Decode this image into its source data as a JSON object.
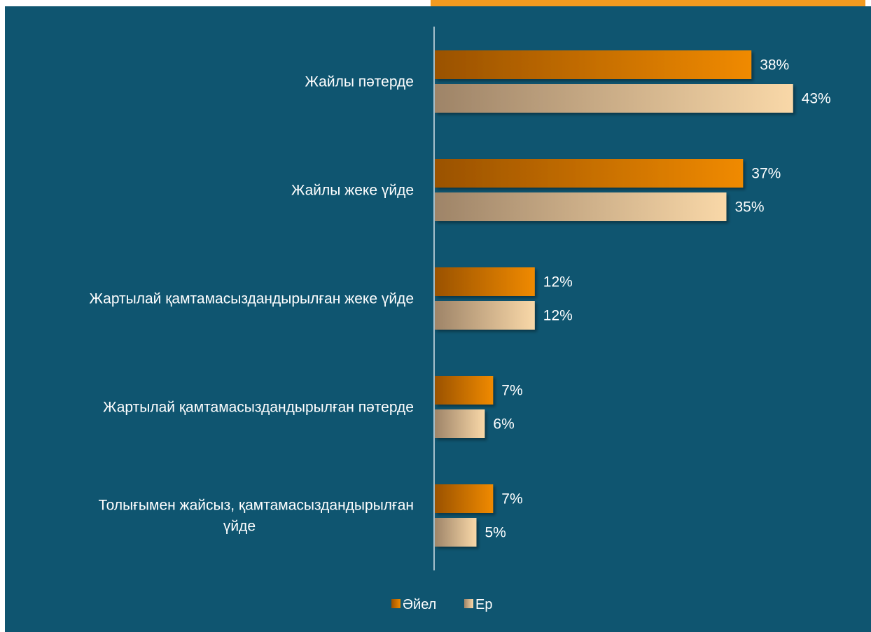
{
  "chart_data": {
    "type": "bar",
    "orientation": "horizontal",
    "title": "",
    "xlabel": "",
    "ylabel": "",
    "categories": [
      [
        "Жайлы пәтерде"
      ],
      [
        "Жайлы жеке үйде"
      ],
      [
        "Жартылай қамтамасыздандырылған жеке үйде"
      ],
      [
        "Жартылай қамтамасыздандырылған пәтерде"
      ],
      [
        "Толығымен жайсыз, қамтамасыздандырылған",
        "үйде"
      ]
    ],
    "series": [
      {
        "name": "Әйел",
        "values": [
          38,
          37,
          12,
          7,
          7
        ],
        "labels": [
          "38%",
          "37%",
          "12%",
          "7%",
          "7%"
        ],
        "color_dark": "#9a5200",
        "color_light": "#f08a00"
      },
      {
        "name": "Ер",
        "values": [
          43,
          35,
          12,
          6,
          5
        ],
        "labels": [
          "43%",
          "35%",
          "12%",
          "6%",
          "5%"
        ],
        "color_dark": "#9e8468",
        "color_light": "#f9d8a8"
      }
    ],
    "xlim": [
      0,
      50
    ],
    "grid": false,
    "legend": "bottom-center",
    "background": "#0f5570",
    "accent": "#f29a1f"
  }
}
